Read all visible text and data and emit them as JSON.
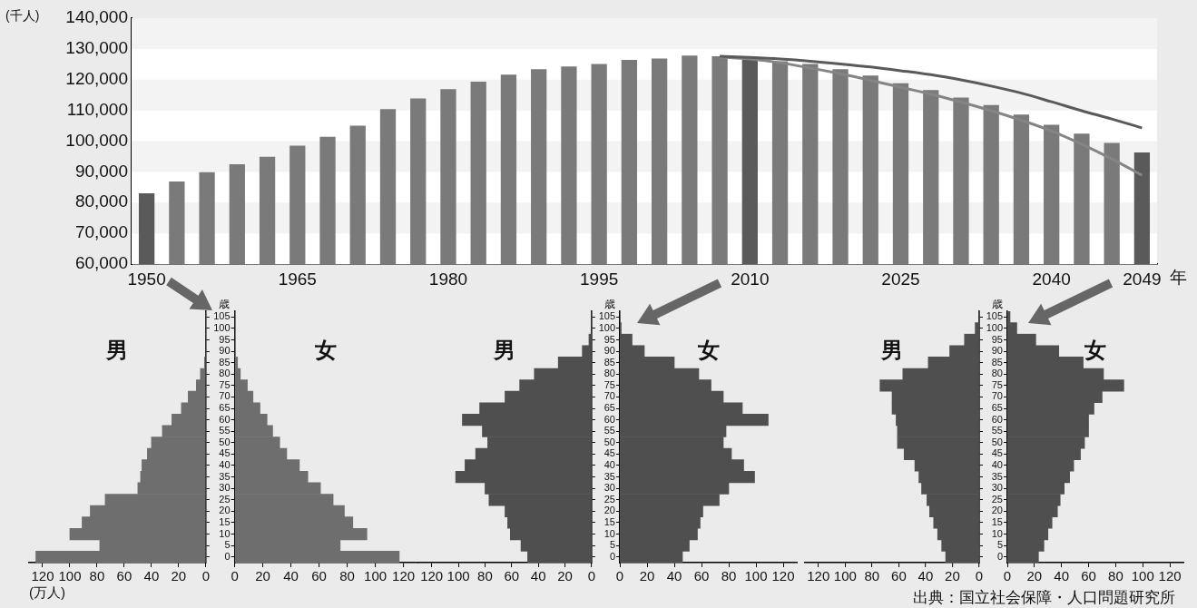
{
  "chart_data": [
    {
      "type": "bar",
      "ylabel": "(千人)",
      "xlabel": "年",
      "categories": [
        "1950",
        null,
        null,
        null,
        null,
        "1965",
        null,
        null,
        null,
        null,
        "1980",
        null,
        null,
        null,
        null,
        "1995",
        null,
        null,
        null,
        null,
        "2010",
        null,
        null,
        null,
        null,
        "2025",
        null,
        null,
        null,
        null,
        "2040",
        null,
        null,
        "2049"
      ],
      "series": [
        {
          "colors": [
            "#5a5a5a",
            "#7a7a7a",
            "#7a7a7a",
            "#7a7a7a",
            "#7a7a7a",
            "#7a7a7a",
            "#7a7a7a",
            "#7a7a7a",
            "#7a7a7a",
            "#7a7a7a",
            "#7a7a7a",
            "#7a7a7a",
            "#7a7a7a",
            "#7a7a7a",
            "#7a7a7a",
            "#7a7a7a",
            "#7a7a7a",
            "#7a7a7a",
            "#7a7a7a",
            "#7a7a7a",
            "#5a5a5a",
            "#7a7a7a",
            "#7a7a7a",
            "#7a7a7a",
            "#7a7a7a",
            "#7a7a7a",
            "#7a7a7a",
            "#7a7a7a",
            "#7a7a7a",
            "#7a7a7a",
            "#7a7a7a",
            "#7a7a7a",
            "#7a7a7a",
            "#5a5a5a"
          ],
          "values": [
            83000,
            86900,
            89900,
            92500,
            94900,
            98500,
            101400,
            105000,
            110400,
            113900,
            116900,
            119300,
            121600,
            123400,
            124300,
            125100,
            126400,
            126900,
            127800,
            127600,
            126400,
            126000,
            125100,
            123400,
            121300,
            118800,
            116600,
            114200,
            111700,
            108600,
            105300,
            102400,
            99400,
            96300
          ]
        },
        {
          "type": "line",
          "color": "#5a5a5a",
          "values": [
            null,
            null,
            null,
            null,
            null,
            null,
            null,
            null,
            null,
            null,
            null,
            null,
            null,
            null,
            null,
            null,
            null,
            null,
            null,
            127600,
            127200,
            126700,
            126000,
            125100,
            124100,
            122900,
            121600,
            119900,
            117900,
            115600,
            112800,
            109900,
            107200,
            104300
          ]
        },
        {
          "type": "line",
          "color": "#858585",
          "values": [
            null,
            null,
            null,
            null,
            null,
            null,
            null,
            null,
            null,
            null,
            null,
            null,
            null,
            null,
            null,
            null,
            null,
            null,
            null,
            127400,
            126700,
            125500,
            123800,
            121900,
            119800,
            117500,
            115300,
            112700,
            109900,
            106800,
            103300,
            99000,
            94200,
            88900
          ]
        }
      ],
      "ylim": [
        60000,
        140000
      ],
      "yticks": [
        {
          "value": 60000,
          "label": "60,000"
        },
        {
          "value": 70000,
          "label": "70,000"
        },
        {
          "value": 80000,
          "label": "80,000"
        },
        {
          "value": 90000,
          "label": "90,000"
        },
        {
          "value": 100000,
          "label": "100,000"
        },
        {
          "value": 110000,
          "label": "110,000"
        },
        {
          "value": 120000,
          "label": "120,000"
        },
        {
          "value": 130000,
          "label": "130,000"
        },
        {
          "value": 140000,
          "label": "140,000"
        }
      ],
      "bands": [
        {
          "axis": "y",
          "from": 70000,
          "to": 80000,
          "color": "#f3f3f3"
        },
        {
          "axis": "y",
          "from": 90000,
          "to": 100000,
          "color": "#f3f3f3"
        },
        {
          "axis": "y",
          "from": 110000,
          "to": 120000,
          "color": "#f3f3f3"
        },
        {
          "axis": "y",
          "from": 130000,
          "to": 140000,
          "color": "#f3f3f3"
        }
      ],
      "marker": "none"
    },
    {
      "type": "bar",
      "orientation": "horizontal",
      "title": "男",
      "xlabel": "(万人)",
      "categories": [
        "105",
        "100",
        "95",
        "90",
        "85",
        "80",
        "75",
        "70",
        "65",
        "60",
        "55",
        "50",
        "45",
        "40",
        "35",
        "30",
        "25",
        "20",
        "15",
        "10",
        "5",
        "0"
      ],
      "values": [
        0,
        0,
        0,
        0,
        1,
        4,
        7,
        13,
        18,
        25,
        32,
        40,
        43,
        47,
        48,
        50,
        74,
        85,
        91,
        100,
        78,
        125
      ],
      "color": "#6e6e6e",
      "xlim": [
        130,
        0
      ],
      "xticks": [
        120,
        100,
        80,
        60,
        40,
        20,
        0
      ],
      "tick_labels": "x"
    },
    {
      "type": "bar",
      "orientation": "horizontal",
      "title": "女",
      "ylabel": "歳",
      "categories": [
        "105",
        "100",
        "95",
        "90",
        "85",
        "80",
        "75",
        "70",
        "65",
        "60",
        "55",
        "50",
        "45",
        "40",
        "35",
        "30",
        "25",
        "20",
        "15",
        "10",
        "5",
        "0"
      ],
      "values": [
        0,
        0,
        0,
        0,
        2,
        4,
        9,
        13,
        18,
        23,
        27,
        32,
        37,
        46,
        52,
        61,
        70,
        78,
        84,
        94,
        75,
        117
      ],
      "color": "#6e6e6e",
      "xlim": [
        0,
        130
      ],
      "xticks": [
        0,
        20,
        40,
        60,
        80,
        100,
        120
      ]
    },
    {
      "type": "bar",
      "orientation": "horizontal",
      "title": "男",
      "categories": [
        "105",
        "100",
        "95",
        "90",
        "85",
        "80",
        "75",
        "70",
        "65",
        "60",
        "55",
        "50",
        "45",
        "40",
        "35",
        "30",
        "25",
        "20",
        "15",
        "10",
        "5",
        "0"
      ],
      "values": [
        0,
        0,
        2,
        7,
        25,
        43,
        54,
        65,
        84,
        97,
        82,
        78,
        87,
        95,
        102,
        80,
        77,
        65,
        63,
        61,
        53,
        48
      ],
      "color": "#4f4f4f",
      "xlim": [
        130,
        0
      ],
      "xticks": [
        120,
        100,
        80,
        60,
        40,
        20,
        0
      ],
      "tick_labels": "x"
    },
    {
      "type": "bar",
      "orientation": "horizontal",
      "title": "女",
      "ylabel": "歳",
      "categories": [
        "105",
        "100",
        "95",
        "90",
        "85",
        "80",
        "75",
        "70",
        "65",
        "60",
        "55",
        "50",
        "45",
        "40",
        "35",
        "30",
        "25",
        "20",
        "15",
        "10",
        "5",
        "0"
      ],
      "values": [
        0,
        1,
        9,
        18,
        40,
        58,
        67,
        76,
        90,
        109,
        78,
        76,
        82,
        91,
        99,
        80,
        73,
        61,
        59,
        57,
        51,
        46
      ],
      "color": "#4f4f4f",
      "xlim": [
        0,
        130
      ],
      "xticks": [
        0,
        20,
        40,
        60,
        80,
        100,
        120
      ]
    },
    {
      "type": "bar",
      "orientation": "horizontal",
      "title": "男",
      "categories": [
        "105",
        "100",
        "95",
        "90",
        "85",
        "80",
        "75",
        "70",
        "65",
        "60",
        "55",
        "50",
        "45",
        "40",
        "35",
        "30",
        "25",
        "20",
        "15",
        "10",
        "5",
        "0"
      ],
      "values": [
        0,
        3,
        11,
        22,
        38,
        57,
        74,
        65,
        65,
        62,
        61,
        61,
        56,
        48,
        45,
        43,
        39,
        37,
        34,
        31,
        28,
        25
      ],
      "color": "#4f4f4f",
      "xlim": [
        130,
        0
      ],
      "xticks": [
        120,
        100,
        80,
        60,
        40,
        20,
        0
      ],
      "tick_labels": "x"
    },
    {
      "type": "bar",
      "orientation": "horizontal",
      "title": "女",
      "ylabel": "歳",
      "categories": [
        "105",
        "100",
        "95",
        "90",
        "85",
        "80",
        "75",
        "70",
        "65",
        "60",
        "55",
        "50",
        "45",
        "40",
        "35",
        "30",
        "25",
        "20",
        "15",
        "10",
        "5",
        "0"
      ],
      "values": [
        2,
        7,
        21,
        38,
        56,
        71,
        86,
        70,
        64,
        60,
        60,
        57,
        54,
        49,
        46,
        42,
        39,
        37,
        33,
        30,
        27,
        23
      ],
      "color": "#4f4f4f",
      "xlim": [
        0,
        130
      ],
      "xticks": [
        0,
        20,
        40,
        60,
        80,
        100,
        120
      ],
      "annotations": [
        "出典：国立社会保障・人口問題研究所"
      ]
    }
  ]
}
